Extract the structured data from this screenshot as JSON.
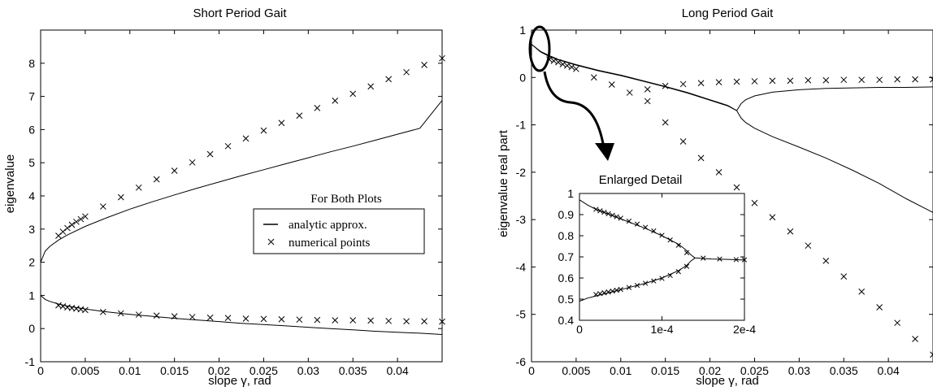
{
  "chart_data": [
    {
      "type": "line",
      "title": "Short Period Gait",
      "xlabel": "slope γ, rad",
      "ylabel": "eigenvalue",
      "xlim": [
        0,
        0.045
      ],
      "ylim": [
        -1,
        9
      ],
      "xticks": [
        0,
        0.005,
        0.01,
        0.015,
        0.02,
        0.025,
        0.03,
        0.035,
        0.04
      ],
      "xtick_labels": [
        "0",
        "0.005",
        "0.01",
        "0.015",
        "0.02",
        "0.025",
        "0.03",
        "0.035",
        "0.04"
      ],
      "yticks": [
        -1,
        0,
        1,
        2,
        3,
        4,
        5,
        6,
        7,
        8
      ],
      "ytick_labels": [
        "-1",
        "0",
        "1",
        "2",
        "3",
        "4",
        "5",
        "6",
        "7",
        "8"
      ],
      "grid": false,
      "series": [
        {
          "name": "analytic approx.",
          "style": "line",
          "branches": [
            {
              "x": [
                0,
                0.0005,
                0.001,
                0.002,
                0.003,
                0.005,
                0.0075,
                0.01,
                0.0125,
                0.015,
                0.0175,
                0.02,
                0.0225,
                0.025,
                0.0275,
                0.03,
                0.0325,
                0.035,
                0.0375,
                0.04,
                0.0425,
                0.045
              ],
              "y": [
                2.0,
                2.33,
                2.47,
                2.67,
                2.82,
                3.08,
                3.35,
                3.6,
                3.82,
                4.03,
                4.23,
                4.42,
                4.61,
                4.79,
                4.97,
                5.15,
                5.33,
                5.5,
                5.68,
                5.86,
                6.04,
                6.88
              ]
            },
            {
              "x": [
                0,
                0.0005,
                0.001,
                0.002,
                0.003,
                0.005,
                0.0075,
                0.01,
                0.0125,
                0.015,
                0.0175,
                0.02,
                0.0225,
                0.025,
                0.0275,
                0.03,
                0.0325,
                0.035,
                0.0375,
                0.04,
                0.0425,
                0.045
              ],
              "y": [
                1.0,
                0.88,
                0.82,
                0.74,
                0.68,
                0.59,
                0.5,
                0.43,
                0.37,
                0.31,
                0.26,
                0.21,
                0.16,
                0.12,
                0.08,
                0.04,
                0.0,
                -0.04,
                -0.08,
                -0.11,
                -0.14,
                -0.18
              ]
            }
          ]
        },
        {
          "name": "numerical points",
          "style": "x-marker",
          "branches": [
            {
              "x": [
                0.002,
                0.0025,
                0.003,
                0.0035,
                0.004,
                0.0045,
                0.005,
                0.007,
                0.009,
                0.011,
                0.013,
                0.015,
                0.017,
                0.019,
                0.021,
                0.023,
                0.025,
                0.027,
                0.029,
                0.031,
                0.033,
                0.035,
                0.037,
                0.039,
                0.041,
                0.043,
                0.045
              ],
              "y": [
                2.8,
                2.92,
                3.03,
                3.13,
                3.22,
                3.3,
                3.38,
                3.68,
                3.96,
                4.25,
                4.5,
                4.76,
                5.01,
                5.26,
                5.5,
                5.73,
                5.97,
                6.2,
                6.42,
                6.65,
                6.87,
                7.08,
                7.3,
                7.52,
                7.73,
                7.95,
                8.15
              ]
            },
            {
              "x": [
                0.002,
                0.0025,
                0.003,
                0.0035,
                0.004,
                0.0045,
                0.005,
                0.007,
                0.009,
                0.011,
                0.013,
                0.015,
                0.017,
                0.019,
                0.021,
                0.023,
                0.025,
                0.027,
                0.029,
                0.031,
                0.033,
                0.035,
                0.037,
                0.039,
                0.041,
                0.043,
                0.045
              ],
              "y": [
                0.7,
                0.67,
                0.64,
                0.62,
                0.6,
                0.58,
                0.56,
                0.5,
                0.46,
                0.42,
                0.39,
                0.37,
                0.35,
                0.33,
                0.32,
                0.3,
                0.29,
                0.28,
                0.27,
                0.26,
                0.25,
                0.25,
                0.24,
                0.23,
                0.22,
                0.22,
                0.21
              ]
            }
          ]
        }
      ],
      "legend": {
        "title": "For Both Plots",
        "position": "center-right",
        "entries": [
          {
            "symbol": "line",
            "label": "analytic approx."
          },
          {
            "symbol": "x",
            "label": "numerical points"
          }
        ]
      }
    },
    {
      "type": "line",
      "title": "Long Period Gait",
      "xlabel": "slope γ, rad",
      "ylabel": "eigenvalue real part",
      "xlim": [
        0,
        0.045
      ],
      "ylim": [
        -6,
        1
      ],
      "xticks": [
        0,
        0.005,
        0.01,
        0.015,
        0.02,
        0.025,
        0.03,
        0.035,
        0.04
      ],
      "xtick_labels": [
        "0",
        "0.005",
        "0.01",
        "0.015",
        "0.02",
        "0.025",
        "0.03",
        "0.035",
        "0.04"
      ],
      "yticks": [
        -6,
        -5,
        -4,
        -3,
        -2,
        -1,
        0,
        1
      ],
      "ytick_labels": [
        "-6",
        "-5",
        "-4",
        "-3",
        "-2",
        "-1",
        "0",
        "1"
      ],
      "grid": false,
      "series": [
        {
          "name": "analytic approx.",
          "style": "line",
          "branches": [
            {
              "x": [
                0,
                0.001,
                0.002,
                0.003,
                0.005,
                0.0075,
                0.01,
                0.0125,
                0.015,
                0.0175,
                0.02,
                0.022,
                0.023
              ],
              "y": [
                0.7,
                0.54,
                0.44,
                0.37,
                0.26,
                0.14,
                0.04,
                -0.08,
                -0.2,
                -0.33,
                -0.48,
                -0.6,
                -0.7
              ]
            },
            {
              "x": [
                0,
                0.001,
                0.002,
                0.003,
                0.005,
                0.0075,
                0.01,
                0.0125,
                0.015,
                0.0175,
                0.02,
                0.022,
                0.023
              ],
              "y": [
                0.7,
                0.55,
                0.46,
                0.38,
                0.27,
                0.15,
                0.05,
                -0.07,
                -0.19,
                -0.32,
                -0.47,
                -0.59,
                -0.7
              ]
            },
            {
              "x": [
                0.023,
                0.0235,
                0.024,
                0.025,
                0.027,
                0.03,
                0.033,
                0.036,
                0.039,
                0.042,
                0.045
              ],
              "y": [
                -0.7,
                -0.55,
                -0.47,
                -0.39,
                -0.31,
                -0.26,
                -0.23,
                -0.22,
                -0.21,
                -0.21,
                -0.2
              ]
            },
            {
              "x": [
                0.023,
                0.0235,
                0.024,
                0.025,
                0.027,
                0.03,
                0.033,
                0.036,
                0.039,
                0.042,
                0.045
              ],
              "y": [
                -0.7,
                -0.86,
                -0.95,
                -1.07,
                -1.25,
                -1.47,
                -1.7,
                -1.96,
                -2.24,
                -2.56,
                -2.85
              ]
            }
          ]
        },
        {
          "name": "numerical points",
          "style": "x-marker",
          "branches": [
            {
              "x": [
                0.002,
                0.0025,
                0.003,
                0.0035,
                0.004,
                0.0045,
                0.005,
                0.007,
                0.009,
                0.011,
                0.013,
                0.015,
                0.017,
                0.019,
                0.021,
                0.023,
                0.025,
                0.027,
                0.029,
                0.031,
                0.033,
                0.035,
                0.037,
                0.039,
                0.041,
                0.043,
                0.045
              ],
              "y": [
                0.38,
                0.35,
                0.32,
                0.28,
                0.25,
                0.22,
                0.18,
                0.0,
                -0.15,
                -0.32,
                -0.25,
                -0.18,
                -0.14,
                -0.12,
                -0.1,
                -0.09,
                -0.08,
                -0.07,
                -0.07,
                -0.06,
                -0.06,
                -0.05,
                -0.05,
                -0.05,
                -0.04,
                -0.04,
                -0.04
              ]
            },
            {
              "x": [
                0.013,
                0.015,
                0.017,
                0.019,
                0.021,
                0.023,
                0.025,
                0.027,
                0.029,
                0.031,
                0.033,
                0.035,
                0.037,
                0.039,
                0.041,
                0.043,
                0.045
              ],
              "y": [
                -0.5,
                -0.95,
                -1.35,
                -1.7,
                -2.0,
                -2.32,
                -2.65,
                -2.95,
                -3.25,
                -3.55,
                -3.87,
                -4.2,
                -4.52,
                -4.85,
                -5.18,
                -5.52,
                -5.85
              ]
            }
          ]
        }
      ],
      "annotation": "ellipse near γ = 0 with curved arrow pointing to the inset"
    },
    {
      "type": "line",
      "title": "Enlarged Detail",
      "xlabel": "",
      "ylabel": "",
      "xlim": [
        0,
        0.0002
      ],
      "ylim": [
        0.4,
        1.0
      ],
      "xticks": [
        0,
        0.0001,
        0.0002
      ],
      "xtick_labels": [
        "0",
        "1e-4",
        "2e-4"
      ],
      "yticks": [
        0.4,
        0.5,
        0.6,
        0.7,
        0.8,
        0.9,
        1.0
      ],
      "ytick_labels": [
        "0.4",
        "0.5",
        "0.6",
        "0.7",
        "0.8",
        "0.9",
        "1"
      ],
      "grid": false,
      "series": [
        {
          "name": "analytic approx.",
          "style": "line",
          "branches": [
            {
              "x": [
                0,
                1e-05,
                2e-05,
                4e-05,
                6e-05,
                8e-05,
                0.0001,
                0.00012,
                0.00013,
                0.000135,
                0.00014
              ],
              "y": [
                0.97,
                0.945,
                0.925,
                0.895,
                0.865,
                0.835,
                0.8,
                0.76,
                0.73,
                0.71,
                0.695
              ]
            },
            {
              "x": [
                0,
                1e-05,
                2e-05,
                4e-05,
                6e-05,
                8e-05,
                0.0001,
                0.00012,
                0.00013,
                0.000135,
                0.00014
              ],
              "y": [
                0.49,
                0.505,
                0.515,
                0.535,
                0.555,
                0.575,
                0.6,
                0.635,
                0.66,
                0.68,
                0.695
              ]
            },
            {
              "x": [
                0.00014,
                0.00016,
                0.00018,
                0.0002
              ],
              "y": [
                0.695,
                0.69,
                0.688,
                0.685
              ]
            }
          ]
        },
        {
          "name": "numerical points",
          "style": "x-marker",
          "branches": [
            {
              "x": [
                2e-05,
                2.5e-05,
                3e-05,
                3.5e-05,
                4e-05,
                4.5e-05,
                5e-05,
                6e-05,
                7e-05,
                8e-05,
                9e-05,
                0.0001,
                0.00011,
                0.00012,
                0.00013
              ],
              "y": [
                0.925,
                0.918,
                0.911,
                0.904,
                0.897,
                0.89,
                0.883,
                0.869,
                0.855,
                0.84,
                0.823,
                0.802,
                0.78,
                0.755,
                0.72
              ]
            },
            {
              "x": [
                2e-05,
                2.5e-05,
                3e-05,
                3.5e-05,
                4e-05,
                4.5e-05,
                5e-05,
                6e-05,
                7e-05,
                8e-05,
                9e-05,
                0.0001,
                0.00011,
                0.00012,
                0.00013
              ],
              "y": [
                0.522,
                0.526,
                0.53,
                0.534,
                0.538,
                0.542,
                0.546,
                0.555,
                0.565,
                0.575,
                0.586,
                0.598,
                0.612,
                0.63,
                0.655
              ]
            },
            {
              "x": [
                0.00015,
                0.00017,
                0.00019,
                0.0002
              ],
              "y": [
                0.694,
                0.69,
                0.687,
                0.686
              ]
            }
          ]
        }
      ]
    }
  ]
}
